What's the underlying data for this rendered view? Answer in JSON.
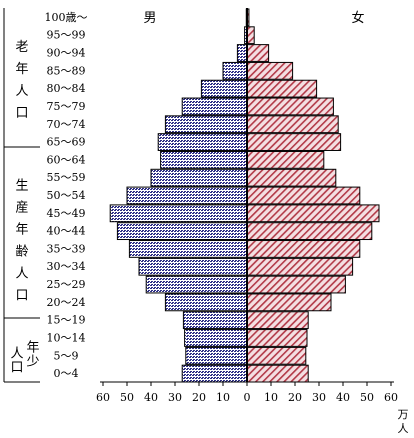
{
  "chart_data": {
    "type": "bar",
    "orientation": "horizontal-pyramid",
    "categories": [
      "0～4",
      "5～9",
      "10～14",
      "15～19",
      "20～24",
      "25～29",
      "30～34",
      "35～39",
      "40～44",
      "45～49",
      "50～54",
      "55～59",
      "60～64",
      "65～69",
      "70～74",
      "75～79",
      "80～84",
      "85～89",
      "90～94",
      "95～99",
      "100歳～"
    ],
    "series": [
      {
        "name": "男",
        "side": "left",
        "color": "#2d2e86",
        "values": [
          27,
          25.5,
          26,
          26.5,
          34,
          42,
          45,
          49,
          54,
          57,
          50,
          40,
          36,
          37,
          34,
          27,
          19,
          10,
          4,
          1,
          0.3
        ]
      },
      {
        "name": "女",
        "side": "right",
        "color": "#b23a48",
        "values": [
          25.5,
          24.5,
          25,
          25.5,
          35,
          41,
          44,
          47,
          52,
          55,
          47,
          37,
          32,
          39,
          38,
          36,
          29,
          19,
          9,
          3,
          0.8
        ]
      }
    ],
    "x_ticks": [
      "60",
      "50",
      "40",
      "30",
      "20",
      "10",
      "0",
      "10",
      "20",
      "30",
      "40",
      "50",
      "60"
    ],
    "xlim": [
      0,
      60
    ],
    "unit_label": "万人",
    "groups": [
      {
        "label": "老年人口",
        "from": "65～69",
        "to": "100歳～"
      },
      {
        "label": "生産年齢人口",
        "from": "15～19",
        "to": "60～64"
      },
      {
        "label": "年少人口",
        "from": "0～4",
        "to": "10～14"
      }
    ],
    "grid": false
  }
}
